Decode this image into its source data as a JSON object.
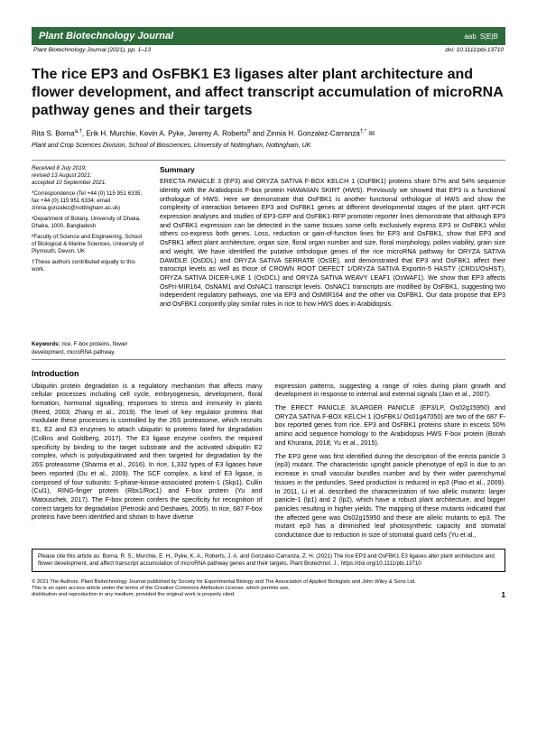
{
  "header": {
    "journal": "Plant Biotechnology Journal",
    "icon1": "aab",
    "icon2": "S|E|B"
  },
  "subheader": {
    "left": "Plant Biotechnology Journal (2021), pp. 1–13",
    "right": "doi: 10.1111/pbi.13710"
  },
  "title": "The rice EP3 and OsFBK1 E3 ligases alter plant architecture and flower development, and affect transcript accumulation of microRNA pathway genes and their targets",
  "authors_html": "Rita S. Borna<sup>a,†</sup>, Erik H. Murchie, Kevin A. Pyke, Jeremy A. Roberts<sup>b</sup> and Zinnia H. Gonzalez-Carranza<sup>†,*</sup> ✉",
  "affiliation": "Plant and Crop Sciences Division, School of Biosciences, University of Nottingham, Nottingham, UK",
  "sidebar": {
    "dates": "Received 8 July 2019;\nrevised 13 August 2021;\naccepted 10 September 2021.",
    "correspondence": "*Correspondence (Tel +44 (0) 115 951 6335; fax +44 (0) 115 951 6334; email zinnia.gonzalez@nottingham.ac.uk)",
    "aff_a": "ᵃDepartment of Botany, University of Dhaka, Dhaka, 1000, Bangladesh",
    "aff_b": "ᵇFaculty of Science and Engineering, School of Biological & Marine Sciences, University of Plymouth, Devon, UK",
    "contrib": "†These authors contributed equally to this work.",
    "keywords_label": "Keywords:",
    "keywords": " rice, F-box proteins, flower development, microRNA pathway."
  },
  "summary": {
    "heading": "Summary",
    "text": "ERECTA PANICLE 3 (EP3) and ORYZA SATIVA F-BOX KELCH 1 (OsFBK1) proteins share 57% and 54% sequence identity with the Arabidopsis F-box protein HAWAIIAN SKIRT (HWS). Previously we showed that EP3 is a functional orthologue of HWS. Here we demonstrate that OsFBK1 is another functional orthologue of HWS and show the complexity of interaction between EP3 and OsFBK1 genes at different developmental stages of the plant. qRT-PCR expression analyses and studies of EP3-GFP and OsFBK1-RFP promoter reporter lines demonstrate that although EP3 and OsFBK1 expression can be detected in the same tissues some cells exclusively express EP3 or OsFBK1 whilst others co-express both genes. Loss, reduction or gain-of-function lines for EP3 and OsFBK1, show that EP3 and OsFBK1 affect plant architecture, organ size, floral organ number and size, floral morphology, pollen viability, grain size and weight. We have identified the putative orthologue genes of the rice microRNA pathway for ORYZA SATIVA DAWDLE (OsDDL) and ORYZA SATIVA SERRATE (OsSE), and demonstrated that EP3 and OsFBK1 affect their transcript levels as well as those of CROWN ROOT DEFECT 1/ORYZA SATIVA Exportin-5 HASTY (CRD1/OsHST), ORYZA SATIVA DICER-LIKE 1 (OsDCL) and ORYZA SATIVA WEAVY LEAF1 (OsWAF1). We show that EP3 affects OsPri-MIR164, OsNAM1 and OsNAC1 transcript levels. OsNAC1 transcripts are modified by OsFBK1, suggesting two independent regulatory pathways, one via EP3 and OsMIR164 and the other via OsFBK1. Our data propose that EP3 and OsFBK1 conjointly play similar roles in rice to how HWS does in Arabidopsis."
  },
  "intro": {
    "heading": "Introduction",
    "p1": "Ubiquitin protein degradation is a regulatory mechanism that affects many cellular processes including cell cycle, embryogenesis, development, floral formation, hormonal signalling, responses to stress and immunity in plants (Reed, 2003; Zhang et al., 2019). The level of key regulator proteins that modulate these processes is controlled by the 26S proteasome, which recruits E1, E2 and E3 enzymes to attach ubiquitin to proteins fated for degradation (Collins and Goldberg, 2017). The E3 ligase enzyme confers the required specificity by binding to the target substrate and the activated ubiquitin E2 complex, which is polyubiquitinated and then targeted for degradation by the 26S proteasome (Sharma et al., 2016). In rice, 1,332 types of E3 ligases have been reported (Du et al., 2009). The SCF complex, a kind of E3 ligase, is composed of four subunits: S-phase-kinase-associated protein-1 (Skp1), Cullin (Cul1), RING-finger protein (Rbx1/Roc1) and F-box protein (Yu and Matouschek, 2017). The F-box protein confers the specificity for recognition of correct targets for degradation (Petroski and Deshaies, 2005). In rice, 687 F-box proteins have been identified and shown to have diverse",
    "p2": "expression patterns, suggesting a range of roles during plant growth and development in response to internal and external signals (Jain et al., 2007).",
    "p3": "The ERECT PANICLE 3/LARGER PANICLE (EP3/LP, Os02g15950) and ORYZA SATIVA F-BOX KELCH 1 (OsFBK1/ Os01g47050) are two of the 687 F-box reported genes from rice. EP3 and OsFBK1 proteins share in excess 50% amino acid sequence homology to the Arabidopsis HWS F-box protein (Borah and Khurana, 2018; Yu et al., 2015).",
    "p4": "The EP3 gene was first identified during the description of the erecta panicle 3 (ep3) mutant. The characteristic upright panicle phenotype of ep3 is due to an increase in small vascular bundles number and by their wider parenchymal tissues in the peduncles. Seed production is reduced in ep3 (Piao et al., 2009). In 2011, Li et al. described the characterization of two allelic mutants: larger panicle-1 (lp1) and 2 (lp2), which have a robust plant architecture, and bigger panicles resulting in higher yields. The mapping of these mutants indicated that the affected gene was Os02g15950 and these are allelic mutants to ep3. The mutant ep3 has a diminished leaf photosynthetic capacity and stomatal conductance due to reduction in size of stomatal guard cells (Yu et al.,"
  },
  "citebox": "Please cite this article as: Borna, R. S., Murchie, E. H., Pyke, K. A., Roberts, J. A. and Gonzalez-Carranza, Z. H. (2021) The rice EP3 and OsFBK1 E3 ligases alter plant architecture and flower development, and affect transcript accumulation of microRNA pathway genes and their targets. Plant Biotechnol. J., https://doi.org/10.1111/pbi.13710",
  "footer": {
    "copyright": "© 2021 The Authors. Plant Biotechnology Journal published by Society for Experimental Biology and The Association of Applied Biologists and John Wiley & Sons Ltd.\nThis is an open access article under the terms of the Creative Commons Attribution License, which permits use,\ndistribution and reproduction in any medium, provided the original work is properly cited.",
    "page": "1"
  },
  "colors": {
    "header_bg": "#2d6b3c",
    "text": "#000000",
    "rule": "#888888"
  }
}
